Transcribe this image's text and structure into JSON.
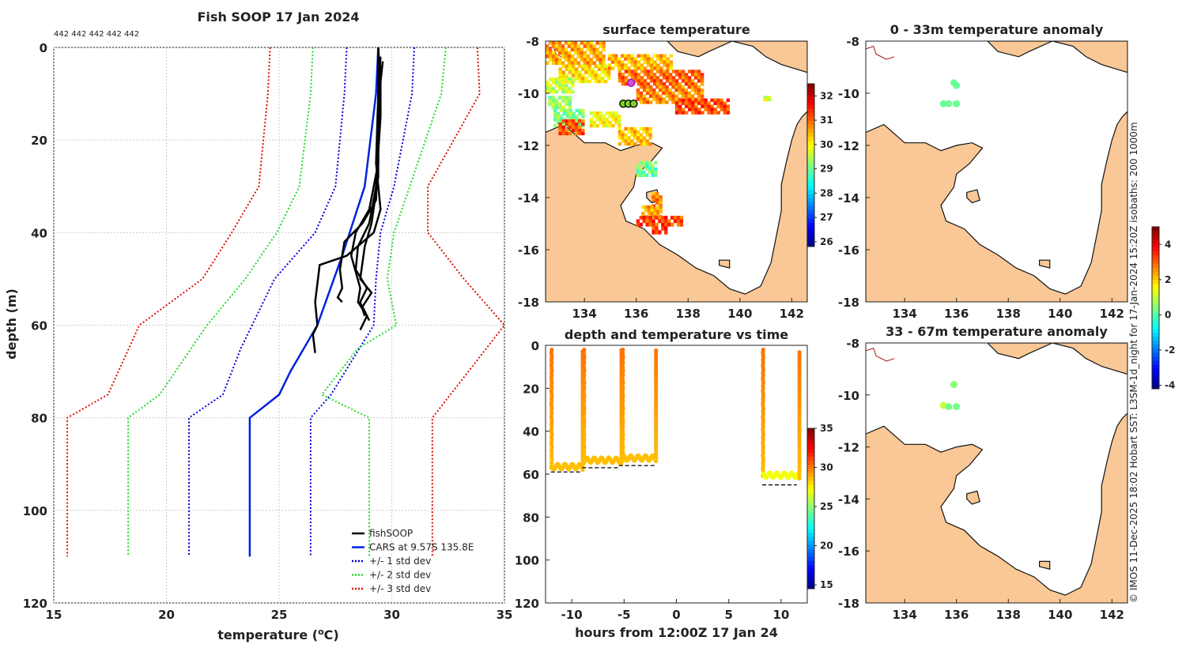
{
  "main_title": "Fish SOOP 17 Jan 2024",
  "profile_ids": "442 442 442 442 442",
  "credit": "© IMOS 11-Dec-2025 18:02 Hobart SST: L3SM-1d_night for 17-Jan-2024 15:20Z isobaths: 200  1000m",
  "colors": {
    "land": "#f9c896",
    "fish": "#000000",
    "cars": "#0022dd",
    "std1": "#0000dd",
    "std2": "#22dd22",
    "std3": "#dd1100"
  },
  "chart_data": [
    {
      "id": "profile",
      "type": "line",
      "title": "Fish SOOP 17 Jan 2024",
      "xlabel": "temperature (oC)",
      "ylabel": "depth (m)",
      "xlim": [
        15,
        35
      ],
      "ylim": [
        120,
        0
      ],
      "xticks": [
        "15",
        "20",
        "25",
        "30",
        "35"
      ],
      "yticks": [
        "0",
        "20",
        "40",
        "60",
        "80",
        "100",
        "120"
      ],
      "grid": true,
      "legend": {
        "position": "bottom-right",
        "entries": [
          "fishSOOP",
          "CARS at 9.57S 135.8E",
          "+/- 1 std dev",
          "+/- 2 std dev",
          "+/- 3 std dev"
        ]
      },
      "series": [
        {
          "name": "CARS at 9.57S 135.8E",
          "style": "solid",
          "temp": [
            29.4,
            29.3,
            28.8,
            27.8,
            26.7,
            25.5,
            25.0,
            23.7,
            23.7
          ],
          "depth": [
            0,
            10,
            30,
            45,
            60,
            70,
            75,
            80,
            110
          ]
        },
        {
          "name": "+/- 1 std dev (low)",
          "style": "dotted",
          "temp": [
            28.0,
            27.9,
            27.5,
            26.6,
            24.8,
            23.3,
            22.5,
            21.0,
            21.0
          ],
          "depth": [
            0,
            10,
            30,
            40,
            50,
            65,
            75,
            80,
            110
          ]
        },
        {
          "name": "+/- 1 std dev (high)",
          "style": "dotted",
          "temp": [
            31.0,
            30.9,
            30.1,
            29.5,
            29.3,
            29.2,
            27.3,
            26.4,
            26.4
          ],
          "depth": [
            0,
            10,
            30,
            40,
            50,
            60,
            75,
            80,
            110
          ]
        },
        {
          "name": "+/- 2 std dev (low)",
          "style": "dotted",
          "temp": [
            26.5,
            26.4,
            25.9,
            24.9,
            23.5,
            21.8,
            19.7,
            18.3,
            18.3
          ],
          "depth": [
            0,
            10,
            30,
            40,
            50,
            60,
            75,
            80,
            110
          ]
        },
        {
          "name": "+/- 2 std dev (high)",
          "style": "dotted",
          "temp": [
            32.4,
            32.2,
            30.8,
            30.1,
            29.8,
            30.2,
            28.5,
            26.9,
            29.0,
            29.0
          ],
          "depth": [
            0,
            10,
            30,
            40,
            50,
            60,
            65,
            75,
            80,
            110
          ]
        },
        {
          "name": "+/- 3 std dev (low)",
          "style": "dotted",
          "temp": [
            24.6,
            24.5,
            24.1,
            22.9,
            21.6,
            18.8,
            17.4,
            15.6,
            15.6
          ],
          "depth": [
            0,
            10,
            30,
            40,
            50,
            60,
            75,
            80,
            110
          ]
        },
        {
          "name": "+/- 3 std dev (high)",
          "style": "dotted",
          "temp": [
            33.8,
            33.9,
            31.6,
            31.6,
            33.2,
            35.0,
            34.2,
            31.8,
            31.8
          ],
          "depth": [
            0,
            10,
            30,
            40,
            50,
            60,
            65,
            80,
            110
          ]
        },
        {
          "name": "fishSOOP cast 1",
          "style": "solid",
          "temp": [
            29.4,
            29.4,
            29.3,
            29.5,
            29.2,
            28.0,
            26.8,
            26.6,
            26.7,
            26.5,
            26.6
          ],
          "depth": [
            0,
            10,
            25,
            35,
            40,
            45,
            47,
            55,
            60,
            62,
            66
          ]
        },
        {
          "name": "fishSOOP cast 2",
          "style": "solid",
          "temp": [
            29.4,
            29.5,
            29.4,
            29.3,
            28.7,
            27.9,
            27.7,
            27.8,
            27.6,
            27.8
          ],
          "depth": [
            0,
            8,
            20,
            33,
            38,
            42,
            48,
            52,
            54,
            55
          ]
        },
        {
          "name": "fishSOOP cast 3",
          "style": "solid",
          "temp": [
            29.5,
            29.4,
            29.4,
            29.0,
            28.4,
            28.2,
            28.6,
            28.5,
            28.9,
            28.6
          ],
          "depth": [
            2,
            10,
            25,
            35,
            40,
            45,
            52,
            55,
            58,
            61
          ]
        },
        {
          "name": "fishSOOP cast 4",
          "style": "solid",
          "temp": [
            29.5,
            29.5,
            29.3,
            29.0,
            28.5,
            28.4,
            28.9,
            28.6,
            28.8
          ],
          "depth": [
            4,
            15,
            30,
            38,
            43,
            48,
            52,
            55,
            58
          ]
        },
        {
          "name": "fishSOOP cast 5",
          "style": "solid",
          "temp": [
            29.6,
            29.4,
            29.4,
            29.1,
            28.8,
            28.6,
            29.1,
            28.7,
            29.0
          ],
          "depth": [
            3,
            12,
            28,
            38,
            43,
            50,
            53,
            56,
            59
          ]
        }
      ]
    },
    {
      "id": "sst_map",
      "type": "heatmap",
      "title": "surface temperature",
      "xlim": [
        132.5,
        142.6
      ],
      "ylim": [
        -18,
        -8
      ],
      "xticks": [
        "134",
        "136",
        "138",
        "140",
        "142"
      ],
      "yticks": [
        "-8",
        "-10",
        "-12",
        "-14",
        "-16",
        "-18"
      ],
      "colorbar": {
        "range": [
          25.8,
          32.5
        ],
        "ticks": [
          "26",
          "27",
          "28",
          "29",
          "30",
          "31",
          "32"
        ]
      },
      "stations": [
        {
          "lon": 135.8,
          "lat": -9.6,
          "marker": "magenta"
        },
        {
          "lon": 135.5,
          "lat": -10.4,
          "marker": "black"
        },
        {
          "lon": 135.7,
          "lat": -10.4,
          "marker": "black"
        },
        {
          "lon": 135.9,
          "lat": -10.4,
          "marker": "black"
        }
      ]
    },
    {
      "id": "time_series",
      "type": "scatter",
      "title": "depth and temperature vs time",
      "xlabel": "hours from 12:00Z 17 Jan 24",
      "xlim": [
        -12.5,
        12.5
      ],
      "ylim": [
        120,
        0
      ],
      "xticks": [
        "-10",
        "-5",
        "0",
        "5",
        "10"
      ],
      "yticks": [
        "0",
        "20",
        "40",
        "60",
        "80",
        "100",
        "120"
      ],
      "colorbar": {
        "range": [
          14.5,
          35
        ],
        "ticks": [
          "15",
          "20",
          "25",
          "30",
          "35"
        ]
      },
      "bottom_depth": [
        {
          "x0": -12.0,
          "x1": -9.0,
          "depth": 59
        },
        {
          "x0": -9.0,
          "x1": -5.5,
          "depth": 57
        },
        {
          "x0": -5.5,
          "x1": -2.0,
          "depth": 56
        },
        {
          "x0": 8.2,
          "x1": 11.5,
          "depth": 65
        }
      ],
      "casts": [
        {
          "t0": -12.0,
          "t1": -8.9,
          "bottom": 58
        },
        {
          "t0": -8.9,
          "t1": -5.2,
          "bottom": 55
        },
        {
          "t0": -5.2,
          "t1": -1.9,
          "bottom": 54
        },
        {
          "t0": 8.2,
          "t1": 11.8,
          "bottom": 62
        }
      ]
    },
    {
      "id": "anom_map_1",
      "type": "scatter",
      "title": "0 - 33m temperature anomaly",
      "xlim": [
        132.5,
        142.6
      ],
      "ylim": [
        -18,
        -8
      ],
      "xticks": [
        "134",
        "136",
        "138",
        "140",
        "142"
      ],
      "yticks": [
        "-8",
        "-10",
        "-12",
        "-14",
        "-16",
        "-18"
      ],
      "points": [
        {
          "lon": 135.9,
          "lat": -9.6,
          "anomaly": 0.2
        },
        {
          "lon": 136.0,
          "lat": -9.7,
          "anomaly": 0.2
        },
        {
          "lon": 135.5,
          "lat": -10.4,
          "anomaly": 0.2
        },
        {
          "lon": 135.7,
          "lat": -10.4,
          "anomaly": 0.2
        },
        {
          "lon": 136.0,
          "lat": -10.4,
          "anomaly": 0.2
        }
      ]
    },
    {
      "id": "anom_map_2",
      "type": "scatter",
      "title": "33 - 67m temperature anomaly",
      "xlim": [
        132.5,
        142.6
      ],
      "ylim": [
        -18,
        -8
      ],
      "xticks": [
        "134",
        "136",
        "138",
        "140",
        "142"
      ],
      "yticks": [
        "-8",
        "-10",
        "-12",
        "-14",
        "-16",
        "-18"
      ],
      "colorbar": {
        "range": [
          -4.2,
          5
        ],
        "ticks": [
          "-4",
          "-2",
          "0",
          "2",
          "4"
        ]
      },
      "points": [
        {
          "lon": 135.9,
          "lat": -9.6,
          "anomaly": 0.5
        },
        {
          "lon": 135.5,
          "lat": -10.4,
          "anomaly": 1.0
        },
        {
          "lon": 135.7,
          "lat": -10.45,
          "anomaly": 0.3
        },
        {
          "lon": 136.0,
          "lat": -10.45,
          "anomaly": 0.3
        }
      ]
    }
  ]
}
